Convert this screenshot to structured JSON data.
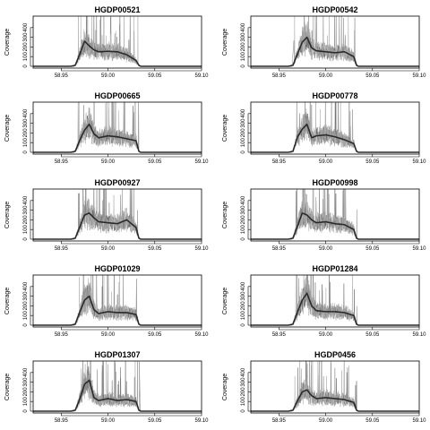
{
  "chart_data": [
    {
      "type": "line",
      "title": "HGDP00521",
      "ylabel": "Coverage",
      "xlim": [
        58.92,
        59.1
      ],
      "ylim": [
        0,
        500
      ],
      "xticks": [
        "58.95",
        "59.00",
        "59.05",
        "59.10"
      ],
      "yticks": [
        "0",
        "100",
        "200",
        "300",
        "400"
      ],
      "x": [
        58.92,
        58.96,
        58.965,
        58.97,
        58.975,
        58.98,
        58.985,
        58.99,
        59.0,
        59.01,
        59.02,
        59.03,
        59.033,
        59.035,
        59.1
      ],
      "y": [
        0,
        0,
        10,
        130,
        260,
        210,
        170,
        150,
        155,
        150,
        120,
        60,
        10,
        0,
        0
      ]
    },
    {
      "type": "line",
      "title": "HGDP00542",
      "ylabel": "Coverage",
      "xlim": [
        58.92,
        59.1
      ],
      "ylim": [
        0,
        500
      ],
      "xticks": [
        "58.95",
        "59.00",
        "59.05",
        "59.10"
      ],
      "yticks": [
        "0",
        "100",
        "200",
        "300",
        "400"
      ],
      "x": [
        58.92,
        58.96,
        58.965,
        58.97,
        58.975,
        58.98,
        58.985,
        58.99,
        59.0,
        59.01,
        59.02,
        59.03,
        59.033,
        59.035,
        59.1
      ],
      "y": [
        0,
        0,
        10,
        130,
        250,
        300,
        190,
        160,
        150,
        140,
        150,
        100,
        10,
        0,
        0
      ]
    },
    {
      "type": "line",
      "title": "HGDP00665",
      "ylabel": "Coverage",
      "xlim": [
        58.92,
        59.1
      ],
      "ylim": [
        0,
        500
      ],
      "xticks": [
        "58.95",
        "59.00",
        "59.05",
        "59.10"
      ],
      "yticks": [
        "0",
        "100",
        "200",
        "300",
        "400"
      ],
      "x": [
        58.92,
        58.96,
        58.965,
        58.97,
        58.975,
        58.98,
        58.985,
        58.99,
        59.0,
        59.01,
        59.02,
        59.03,
        59.033,
        59.035,
        59.1
      ],
      "y": [
        0,
        0,
        10,
        130,
        230,
        290,
        190,
        150,
        170,
        160,
        140,
        120,
        10,
        0,
        0
      ]
    },
    {
      "type": "line",
      "title": "HGDP00778",
      "ylabel": "Coverage",
      "xlim": [
        58.92,
        59.1
      ],
      "ylim": [
        0,
        500
      ],
      "xticks": [
        "58.95",
        "59.00",
        "59.05",
        "59.10"
      ],
      "yticks": [
        "0",
        "100",
        "200",
        "300",
        "400"
      ],
      "x": [
        58.92,
        58.96,
        58.965,
        58.97,
        58.975,
        58.98,
        58.985,
        58.99,
        59.0,
        59.01,
        59.02,
        59.03,
        59.033,
        59.035,
        59.1
      ],
      "y": [
        0,
        0,
        10,
        160,
        240,
        290,
        150,
        170,
        180,
        160,
        130,
        90,
        10,
        0,
        0
      ]
    },
    {
      "type": "line",
      "title": "HGDP00927",
      "ylabel": "Coverage",
      "xlim": [
        58.92,
        59.1
      ],
      "ylim": [
        0,
        500
      ],
      "xticks": [
        "58.95",
        "59.00",
        "59.05",
        "59.10"
      ],
      "yticks": [
        "0",
        "100",
        "200",
        "300",
        "400"
      ],
      "x": [
        58.92,
        58.96,
        58.965,
        58.97,
        58.975,
        58.98,
        58.985,
        58.99,
        59.0,
        59.01,
        59.02,
        59.03,
        59.033,
        59.035,
        59.1
      ],
      "y": [
        0,
        0,
        10,
        130,
        250,
        270,
        220,
        180,
        170,
        160,
        200,
        120,
        10,
        0,
        0
      ]
    },
    {
      "type": "line",
      "title": "HGDP00998",
      "ylabel": "Coverage",
      "xlim": [
        58.92,
        59.1
      ],
      "ylim": [
        0,
        500
      ],
      "xticks": [
        "58.95",
        "59.00",
        "59.05",
        "59.10"
      ],
      "yticks": [
        "0",
        "100",
        "200",
        "300",
        "400"
      ],
      "x": [
        58.92,
        58.96,
        58.965,
        58.97,
        58.975,
        58.98,
        58.985,
        58.99,
        59.0,
        59.01,
        59.02,
        59.03,
        59.033,
        59.035,
        59.1
      ],
      "y": [
        0,
        0,
        10,
        140,
        270,
        250,
        200,
        170,
        180,
        160,
        150,
        100,
        10,
        0,
        0
      ]
    },
    {
      "type": "line",
      "title": "HGDP01029",
      "ylabel": "Coverage",
      "xlim": [
        58.92,
        59.1
      ],
      "ylim": [
        0,
        500
      ],
      "xticks": [
        "58.95",
        "59.00",
        "59.05",
        "59.10"
      ],
      "yticks": [
        "0",
        "100",
        "200",
        "300",
        "400"
      ],
      "x": [
        58.92,
        58.96,
        58.965,
        58.97,
        58.975,
        58.98,
        58.985,
        58.99,
        59.0,
        59.01,
        59.02,
        59.03,
        59.033,
        59.035,
        59.1
      ],
      "y": [
        0,
        0,
        10,
        140,
        260,
        300,
        160,
        120,
        140,
        130,
        130,
        110,
        10,
        0,
        0
      ]
    },
    {
      "type": "line",
      "title": "HGDP01284",
      "ylabel": "Coverage",
      "xlim": [
        58.92,
        59.1
      ],
      "ylim": [
        0,
        500
      ],
      "xticks": [
        "58.95",
        "59.00",
        "59.05",
        "59.10"
      ],
      "yticks": [
        "0",
        "100",
        "200",
        "300",
        "400"
      ],
      "x": [
        58.92,
        58.96,
        58.965,
        58.97,
        58.975,
        58.98,
        58.985,
        58.99,
        59.0,
        59.01,
        59.02,
        59.03,
        59.033,
        59.035,
        59.1
      ],
      "y": [
        0,
        0,
        10,
        140,
        260,
        330,
        200,
        150,
        140,
        140,
        130,
        100,
        10,
        0,
        0
      ]
    },
    {
      "type": "line",
      "title": "HGDP01307",
      "ylabel": "Coverage",
      "xlim": [
        58.92,
        59.1
      ],
      "ylim": [
        0,
        500
      ],
      "xticks": [
        "58.95",
        "59.00",
        "59.05",
        "59.10"
      ],
      "yticks": [
        "0",
        "100",
        "200",
        "300",
        "400"
      ],
      "x": [
        58.92,
        58.96,
        58.965,
        58.97,
        58.975,
        58.98,
        58.985,
        58.99,
        59.0,
        59.01,
        59.02,
        59.03,
        59.033,
        59.035,
        59.1
      ],
      "y": [
        0,
        0,
        10,
        130,
        280,
        320,
        140,
        110,
        130,
        110,
        120,
        100,
        10,
        0,
        0
      ]
    },
    {
      "type": "line",
      "title": "HGDP0456",
      "ylabel": "Coverage",
      "xlim": [
        58.92,
        59.1
      ],
      "ylim": [
        0,
        500
      ],
      "xticks": [
        "58.95",
        "59.00",
        "59.05",
        "59.10"
      ],
      "yticks": [
        "0",
        "100",
        "200",
        "300",
        "400"
      ],
      "x": [
        58.92,
        58.96,
        58.965,
        58.97,
        58.975,
        58.98,
        58.985,
        58.99,
        59.0,
        59.01,
        59.02,
        59.03,
        59.033,
        59.035,
        59.1
      ],
      "y": [
        0,
        0,
        10,
        110,
        200,
        220,
        160,
        130,
        140,
        130,
        120,
        90,
        10,
        0,
        0
      ]
    }
  ]
}
